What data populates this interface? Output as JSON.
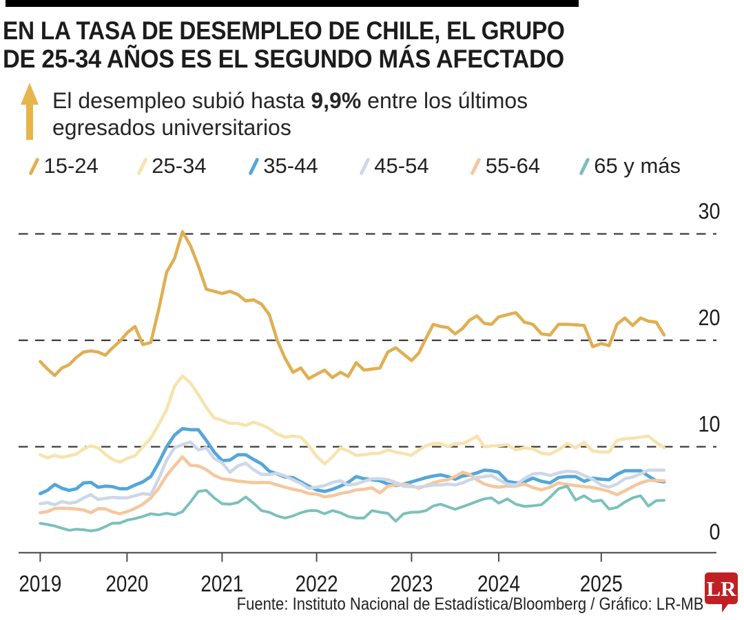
{
  "title": {
    "line1": "EN LA TASA DE DESEMPLEO DE CHILE, EL GRUPO",
    "line2": "DE 25-34 AÑOS ES EL SEGUNDO MÁS AFECTADO"
  },
  "subtitle": {
    "pre": "El desempleo subió hasta ",
    "highlight": "9,9%",
    "post": " entre los últimos",
    "line2": "egresados universitarios",
    "arrow_color": "#E7B54C"
  },
  "legend": [
    {
      "label": "15-24",
      "color": "#E0AF53"
    },
    {
      "label": "25-34",
      "color": "#F8E3AE"
    },
    {
      "label": "35-44",
      "color": "#54A6DA"
    },
    {
      "label": "45-54",
      "color": "#CDD7E9"
    },
    {
      "label": "55-64",
      "color": "#F5C79E"
    },
    {
      "label": "65 y más",
      "color": "#7CC0BB"
    }
  ],
  "chart_data": {
    "type": "line",
    "title": "Tasa de desempleo de Chile por grupo de edad (%)",
    "x_axis": {
      "tick_labels": [
        "2019",
        "2020",
        "2021",
        "2022",
        "2023",
        "2024",
        "2025"
      ]
    },
    "y_axis": {
      "tick_labels": [
        "30",
        "20",
        "10",
        "0"
      ],
      "tick_values": [
        30,
        20,
        10,
        0
      ],
      "min": 0,
      "max": 30,
      "gridlines": "dashed"
    },
    "start_month": "2019-01",
    "end_month": "2025-09",
    "frequency": "monthly",
    "legend_position": "top",
    "series": [
      {
        "name": "15-24",
        "color": "#E0AF53",
        "width": 4.6,
        "values": [
          18.0,
          17.3,
          16.7,
          17.4,
          17.7,
          18.4,
          18.9,
          19.0,
          18.9,
          18.6,
          19.3,
          19.9,
          20.7,
          21.3,
          19.6,
          19.8,
          22.9,
          26.4,
          27.7,
          30.2,
          28.9,
          27.0,
          24.8,
          24.6,
          24.4,
          24.6,
          24.3,
          23.7,
          23.8,
          23.4,
          22.4,
          20.0,
          18.3,
          17.0,
          17.4,
          16.4,
          16.8,
          17.2,
          16.5,
          17.0,
          16.6,
          17.9,
          17.2,
          17.3,
          17.4,
          18.9,
          19.3,
          18.7,
          18.1,
          18.8,
          20.2,
          21.5,
          21.3,
          21.2,
          20.6,
          21.1,
          21.9,
          22.3,
          21.6,
          21.5,
          22.2,
          22.4,
          22.6,
          21.7,
          21.5,
          20.6,
          20.5,
          21.5,
          21.5,
          21.45,
          21.4,
          19.4,
          19.7,
          19.5,
          21.5,
          22.1,
          21.4,
          22.1,
          21.8,
          21.7,
          20.5
        ]
      },
      {
        "name": "25-34",
        "color": "#F8E3AE",
        "width": 4.6,
        "values": [
          9.25,
          8.95,
          9.2,
          9.0,
          9.15,
          9.3,
          9.8,
          10.1,
          9.9,
          9.3,
          8.8,
          8.55,
          8.9,
          9.15,
          10.0,
          10.8,
          12.1,
          13.5,
          15.7,
          16.65,
          16.0,
          14.9,
          13.7,
          12.7,
          12.5,
          12.2,
          12.2,
          12.0,
          12.3,
          12.05,
          11.7,
          11.2,
          10.9,
          11.0,
          10.9,
          10.1,
          9.1,
          8.4,
          9.05,
          9.9,
          9.6,
          9.2,
          9.25,
          9.35,
          9.4,
          9.7,
          9.5,
          9.35,
          9.2,
          9.7,
          10.1,
          10.3,
          10.3,
          10.0,
          10.3,
          10.3,
          10.6,
          11.0,
          10.0,
          10.1,
          10.1,
          10.2,
          9.7,
          9.9,
          9.8,
          9.4,
          9.3,
          9.7,
          10.3,
          9.9,
          10.4,
          9.6,
          9.5,
          9.5,
          10.6,
          10.75,
          10.8,
          10.9,
          11.0,
          10.4,
          9.9
        ]
      },
      {
        "name": "35-44",
        "color": "#54A6DA",
        "width": 4.8,
        "values": [
          5.6,
          5.9,
          6.45,
          6.1,
          5.9,
          6.05,
          6.6,
          6.65,
          6.2,
          6.3,
          6.25,
          6.05,
          6.05,
          6.4,
          6.7,
          7.2,
          8.5,
          10.0,
          11.1,
          11.7,
          11.6,
          11.6,
          10.6,
          9.5,
          8.7,
          8.75,
          9.25,
          9.25,
          8.8,
          8.4,
          7.7,
          7.45,
          7.15,
          7.1,
          6.7,
          6.3,
          5.95,
          5.8,
          6.0,
          6.3,
          6.65,
          7.2,
          7.0,
          6.9,
          6.8,
          6.5,
          6.35,
          6.5,
          6.7,
          6.9,
          7.1,
          7.25,
          7.35,
          7.2,
          6.95,
          7.25,
          7.35,
          7.55,
          7.8,
          7.75,
          7.6,
          6.75,
          6.6,
          6.7,
          7.05,
          6.75,
          6.6,
          7.1,
          7.2,
          7.2,
          6.75,
          7.05,
          6.95,
          6.9,
          7.4,
          7.75,
          7.75,
          7.75,
          7.25,
          6.8,
          6.7
        ]
      },
      {
        "name": "55-64",
        "color": "#F5C79E",
        "width": 4.6,
        "values": [
          3.8,
          3.9,
          4.2,
          4.22,
          4.2,
          4.15,
          4.06,
          3.8,
          4.18,
          4.17,
          3.87,
          3.7,
          3.9,
          4.2,
          4.6,
          5.2,
          6.1,
          7.3,
          8.2,
          9.05,
          8.25,
          8.2,
          7.85,
          7.3,
          7.0,
          6.9,
          6.77,
          6.7,
          6.62,
          6.64,
          6.64,
          6.41,
          6.2,
          6.0,
          5.86,
          5.6,
          5.55,
          5.3,
          5.4,
          5.6,
          5.73,
          5.95,
          6.0,
          6.14,
          5.66,
          6.3,
          6.4,
          6.5,
          6.35,
          6.1,
          6.35,
          6.6,
          6.8,
          6.9,
          7.2,
          7.6,
          7.4,
          6.9,
          6.5,
          6.3,
          6.2,
          6.3,
          6.3,
          6.5,
          6.16,
          5.95,
          6.2,
          6.6,
          6.45,
          6.35,
          6.25,
          6.17,
          6.0,
          5.8,
          5.5,
          5.85,
          6.25,
          6.6,
          6.83,
          6.83,
          6.8
        ]
      },
      {
        "name": "45-54",
        "color": "#CDD7E9",
        "width": 4.6,
        "values": [
          4.65,
          4.75,
          4.55,
          4.85,
          4.7,
          4.8,
          5.2,
          5.5,
          5.05,
          5.15,
          5.25,
          5.2,
          5.2,
          5.4,
          5.6,
          5.5,
          7.0,
          8.75,
          9.9,
          10.2,
          10.45,
          9.7,
          9.9,
          8.9,
          8.5,
          7.6,
          8.2,
          8.45,
          7.85,
          7.4,
          7.4,
          7.5,
          7.25,
          6.9,
          6.55,
          6.1,
          6.2,
          6.35,
          6.65,
          6.8,
          6.4,
          6.5,
          6.75,
          7.0,
          7.0,
          6.9,
          6.65,
          6.3,
          6.25,
          6.2,
          6.3,
          6.4,
          6.4,
          6.5,
          6.4,
          6.6,
          6.9,
          7.1,
          7.2,
          7.3,
          6.9,
          6.5,
          6.4,
          7.0,
          7.45,
          7.5,
          7.3,
          7.55,
          7.7,
          7.65,
          7.3,
          6.95,
          6.4,
          6.2,
          6.5,
          7.0,
          7.15,
          7.45,
          7.8,
          7.8,
          7.8
        ]
      },
      {
        "name": "65 y más",
        "color": "#7CC0BB",
        "width": 4.0,
        "values": [
          2.8,
          2.7,
          2.55,
          2.35,
          2.15,
          2.25,
          2.2,
          2.1,
          2.2,
          2.5,
          2.82,
          2.82,
          3.1,
          3.25,
          3.45,
          3.7,
          3.6,
          3.75,
          3.6,
          3.9,
          4.8,
          5.8,
          5.9,
          5.2,
          4.65,
          4.6,
          4.76,
          5.28,
          4.7,
          4.0,
          3.84,
          3.5,
          3.3,
          3.5,
          3.8,
          4.0,
          4.0,
          3.7,
          4.0,
          3.8,
          3.45,
          3.3,
          3.3,
          4.0,
          3.85,
          3.75,
          3.0,
          3.7,
          3.85,
          3.86,
          4.0,
          4.44,
          4.6,
          4.36,
          4.12,
          4.36,
          4.6,
          4.87,
          5.1,
          5.2,
          4.7,
          5.1,
          4.6,
          4.4,
          4.45,
          4.55,
          5.25,
          6.05,
          6.3,
          5.0,
          5.4,
          4.86,
          4.98,
          4.15,
          4.3,
          4.8,
          5.2,
          5.4,
          4.43,
          4.94,
          4.97
        ]
      }
    ]
  },
  "footer": {
    "source": "Fuente: Instituto Nacional de Estadística/Bloomberg / Gráfico: LR-MB",
    "logo_text": "LR",
    "logo_color": "#C01F24"
  }
}
